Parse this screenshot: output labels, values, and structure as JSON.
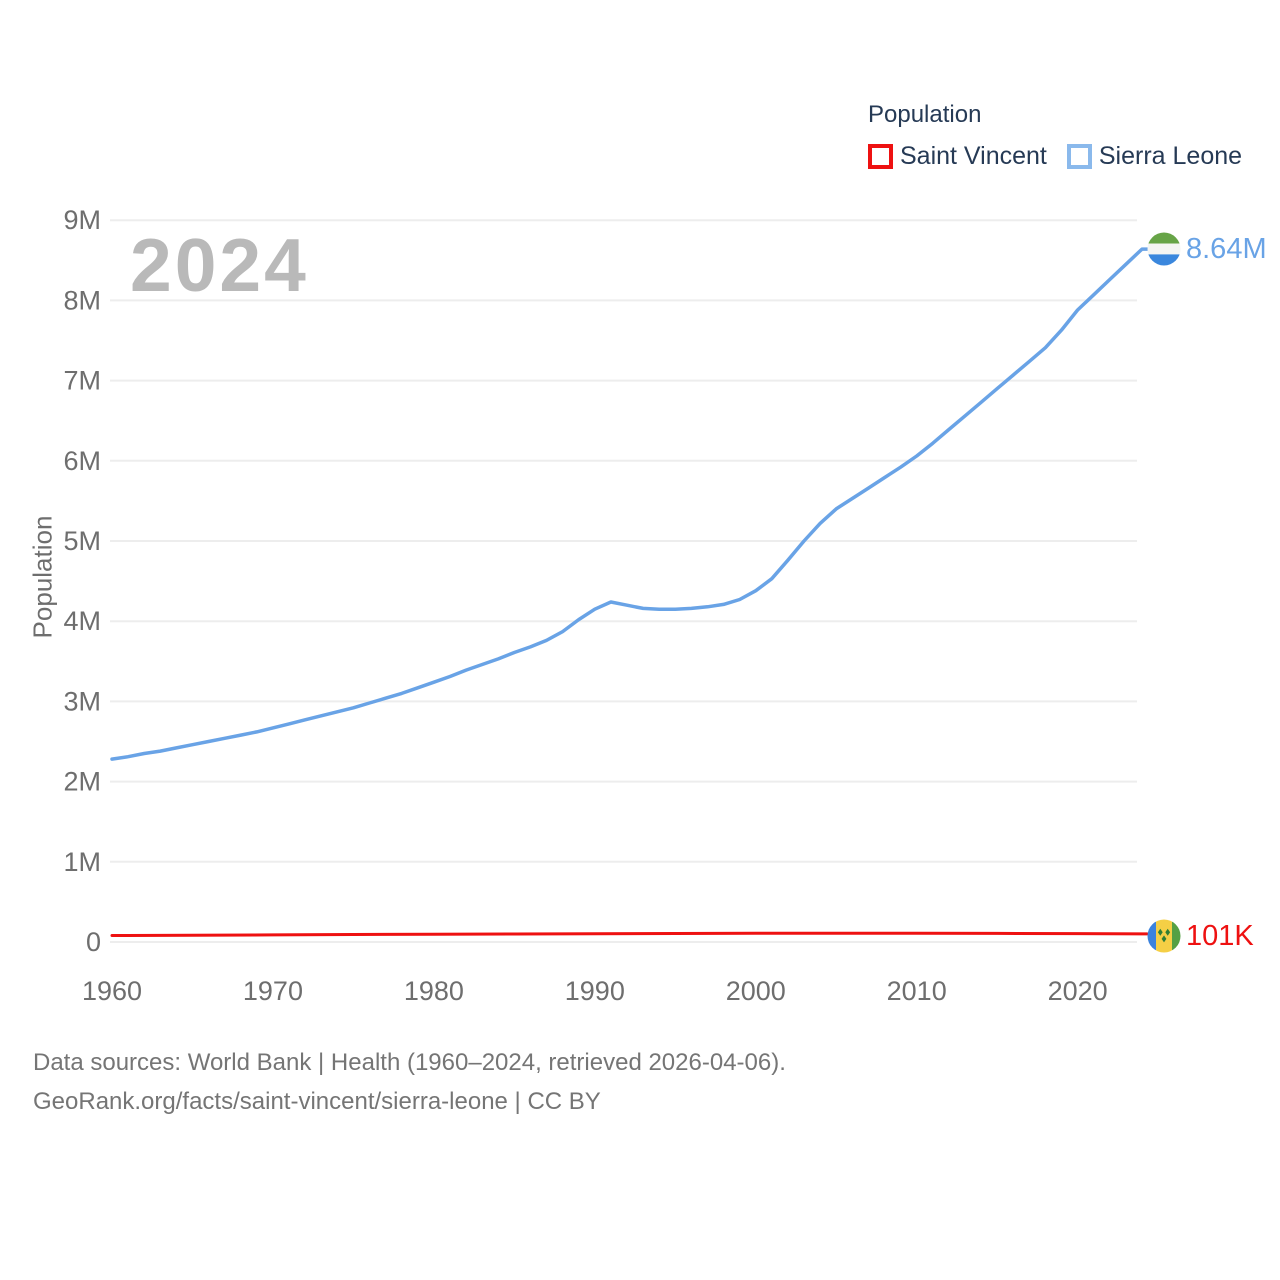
{
  "legend": {
    "title": "Population",
    "items": [
      {
        "label": "Saint Vincent",
        "swatch_color": "#ee1111"
      },
      {
        "label": "Sierra Leone",
        "swatch_color": "#8ab9ec"
      }
    ]
  },
  "watermark": "2024",
  "colors": {
    "saint_vincent_line": "#ee1111",
    "sierra_leone_line": "#69a3e6",
    "grid": "#ededed",
    "axis_text": "#6e6e6e",
    "legend_text": "#263a55",
    "watermark": "#b9b9b9",
    "footer_text": "#757575"
  },
  "chart_data": {
    "type": "line",
    "title": "Population",
    "xlabel": "",
    "ylabel": "Population",
    "xlim": [
      1960,
      2024
    ],
    "ylim": [
      0,
      9000000
    ],
    "grid": "horizontal",
    "legend_position": "top-right",
    "y_ticks": [
      {
        "value": 0,
        "label": "0"
      },
      {
        "value": 1000000,
        "label": "1M"
      },
      {
        "value": 2000000,
        "label": "2M"
      },
      {
        "value": 3000000,
        "label": "3M"
      },
      {
        "value": 4000000,
        "label": "4M"
      },
      {
        "value": 5000000,
        "label": "5M"
      },
      {
        "value": 6000000,
        "label": "6M"
      },
      {
        "value": 7000000,
        "label": "7M"
      },
      {
        "value": 8000000,
        "label": "8M"
      },
      {
        "value": 9000000,
        "label": "9M"
      }
    ],
    "x_ticks": [
      {
        "value": 1960,
        "label": "1960"
      },
      {
        "value": 1970,
        "label": "1970"
      },
      {
        "value": 1980,
        "label": "1980"
      },
      {
        "value": 1990,
        "label": "1990"
      },
      {
        "value": 2000,
        "label": "2000"
      },
      {
        "value": 2010,
        "label": "2010"
      },
      {
        "value": 2020,
        "label": "2020"
      }
    ],
    "series": [
      {
        "name": "Saint Vincent",
        "color": "#ee1111",
        "end_label": "101K",
        "flag": "saint-vincent-flag",
        "x": [
          1960,
          1965,
          1970,
          1975,
          1980,
          1985,
          1990,
          1995,
          2000,
          2005,
          2010,
          2015,
          2020,
          2022,
          2024
        ],
        "values": [
          81000,
          85000,
          89000,
          93000,
          97000,
          100000,
          104000,
          106000,
          108000,
          108000,
          109000,
          107000,
          105000,
          103000,
          101000
        ]
      },
      {
        "name": "Sierra Leone",
        "color": "#69a3e6",
        "end_label": "8.64M",
        "flag": "sierra-leone-flag",
        "x": [
          1960,
          1961,
          1962,
          1963,
          1964,
          1965,
          1966,
          1967,
          1968,
          1969,
          1970,
          1971,
          1972,
          1973,
          1974,
          1975,
          1976,
          1977,
          1978,
          1979,
          1980,
          1981,
          1982,
          1983,
          1984,
          1985,
          1986,
          1987,
          1988,
          1989,
          1990,
          1991,
          1992,
          1993,
          1994,
          1995,
          1996,
          1997,
          1998,
          1999,
          2000,
          2001,
          2002,
          2003,
          2004,
          2005,
          2006,
          2007,
          2008,
          2009,
          2010,
          2011,
          2012,
          2013,
          2014,
          2015,
          2016,
          2017,
          2018,
          2019,
          2020,
          2021,
          2022,
          2023,
          2024
        ],
        "values": [
          2280000,
          2310000,
          2350000,
          2380000,
          2420000,
          2460000,
          2500000,
          2540000,
          2580000,
          2620000,
          2670000,
          2720000,
          2770000,
          2820000,
          2870000,
          2920000,
          2980000,
          3040000,
          3100000,
          3170000,
          3240000,
          3310000,
          3390000,
          3460000,
          3530000,
          3610000,
          3680000,
          3760000,
          3870000,
          4020000,
          4150000,
          4240000,
          4200000,
          4160000,
          4150000,
          4150000,
          4160000,
          4180000,
          4210000,
          4270000,
          4380000,
          4530000,
          4760000,
          5000000,
          5220000,
          5400000,
          5530000,
          5660000,
          5790000,
          5920000,
          6060000,
          6220000,
          6390000,
          6560000,
          6730000,
          6900000,
          7070000,
          7240000,
          7410000,
          7630000,
          7880000,
          8070000,
          8260000,
          8450000,
          8640000
        ]
      }
    ]
  },
  "footer": {
    "line1": "Data sources: World Bank | Health (1960–2024, retrieved 2026-04-06).",
    "line2": "GeoRank.org/facts/saint-vincent/sierra-leone | CC BY"
  }
}
